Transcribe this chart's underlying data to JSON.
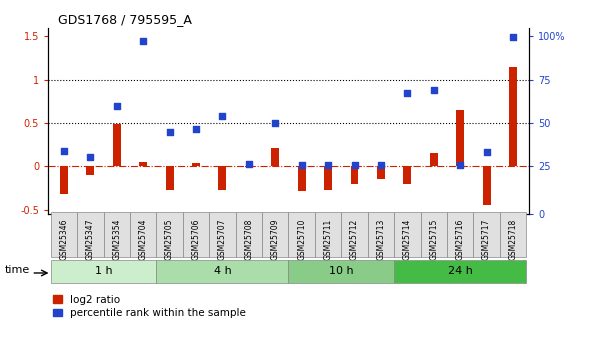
{
  "title": "GDS1768 / 795595_A",
  "samples": [
    "GSM25346",
    "GSM25347",
    "GSM25354",
    "GSM25704",
    "GSM25705",
    "GSM25706",
    "GSM25707",
    "GSM25708",
    "GSM25709",
    "GSM25710",
    "GSM25711",
    "GSM25712",
    "GSM25713",
    "GSM25714",
    "GSM25715",
    "GSM25716",
    "GSM25717",
    "GSM25718"
  ],
  "log2_ratio": [
    -0.32,
    -0.1,
    0.49,
    0.05,
    -0.27,
    0.04,
    -0.27,
    -0.01,
    0.21,
    -0.28,
    -0.27,
    -0.2,
    -0.15,
    -0.2,
    0.15,
    0.65,
    -0.45,
    1.15
  ],
  "pct_rank": [
    0.18,
    0.11,
    0.7,
    1.44,
    0.4,
    0.43,
    0.58,
    0.03,
    0.5,
    0.02,
    0.02,
    0.02,
    0.01,
    0.85,
    0.88,
    0.01,
    0.17,
    1.49
  ],
  "groups": [
    {
      "label": "1 h",
      "start": 0,
      "end": 4,
      "color": "#bbeeaa"
    },
    {
      "label": "4 h",
      "start": 4,
      "end": 9,
      "color": "#aae8a0"
    },
    {
      "label": "10 h",
      "start": 9,
      "end": 13,
      "color": "#88dd88"
    },
    {
      "label": "24 h",
      "start": 13,
      "end": 18,
      "color": "#55cc55"
    }
  ],
  "bar_color_red": "#cc2200",
  "bar_color_blue": "#2244cc",
  "ylim_left": [
    -0.55,
    1.6
  ],
  "yticks_left": [
    -0.5,
    0.0,
    0.5,
    1.0,
    1.5
  ],
  "yticks_right": [
    0.0,
    0.25,
    0.5,
    0.75,
    1.0
  ],
  "ytick_labels_right": [
    "0",
    "25",
    "50",
    "75",
    "100%"
  ],
  "hlines": [
    1.0,
    0.5
  ],
  "background_color": "#ffffff",
  "bar_width": 0.3,
  "pct_max": 2.0,
  "xlim": [
    -0.6,
    17.6
  ]
}
